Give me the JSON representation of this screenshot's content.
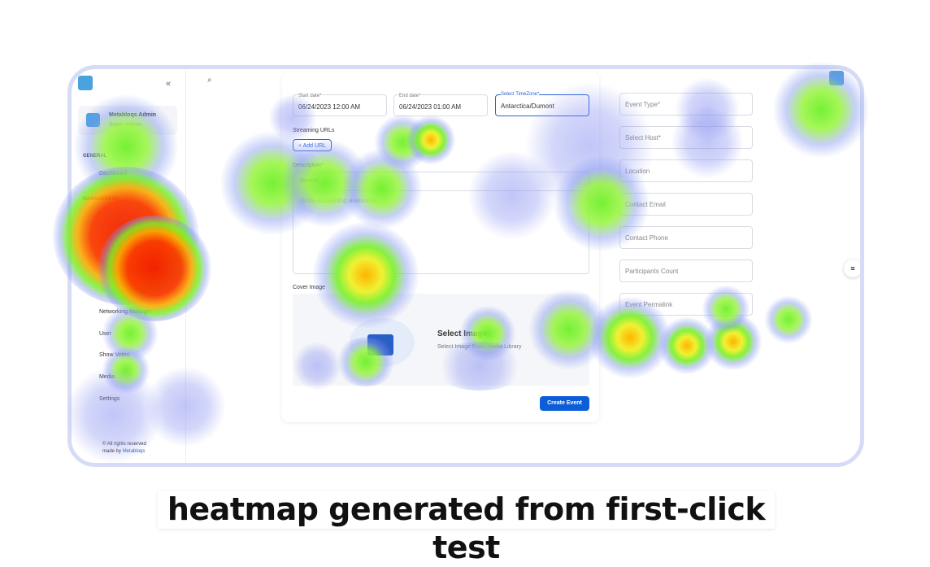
{
  "sidebar": {
    "brand": "Metabloqs Admin",
    "role": "Super Admin",
    "sections": [
      {
        "title": "GENERAL",
        "items": [
          "Dashboard"
        ]
      },
      {
        "title": "MANAGEMENT",
        "items": [
          "Networking Manager",
          "User",
          "Show Votes",
          "Media",
          "Settings"
        ]
      }
    ],
    "footer": {
      "rights": "© All rights reserved",
      "made_by": "made by",
      "company": "Metabloqs"
    }
  },
  "form": {
    "start_date": {
      "label": "Start date*",
      "value": "06/24/2023 12:00 AM"
    },
    "end_date": {
      "label": "End date*",
      "value": "06/24/2023 01:00 AM"
    },
    "timezone": {
      "label": "Select TimeZone*",
      "value": "Antarctica/Dumont"
    },
    "streaming_label": "Streaming URLs",
    "add_url": "Add URL",
    "description_label": "Description*",
    "editor_format": "Normal",
    "editor_placeholder": "Write something awesome...",
    "cover_label": "Cover Image",
    "select_image": "Select Image",
    "select_image_hint": "Select Image From Media Library",
    "submit": "Create Event",
    "right_fields": [
      "Event Type*",
      "Select Host*",
      "Location",
      "Contact Email",
      "Contact Phone",
      "Participants Count",
      "Event Permalink"
    ]
  },
  "caption": "heatmap generated from first-click test"
}
